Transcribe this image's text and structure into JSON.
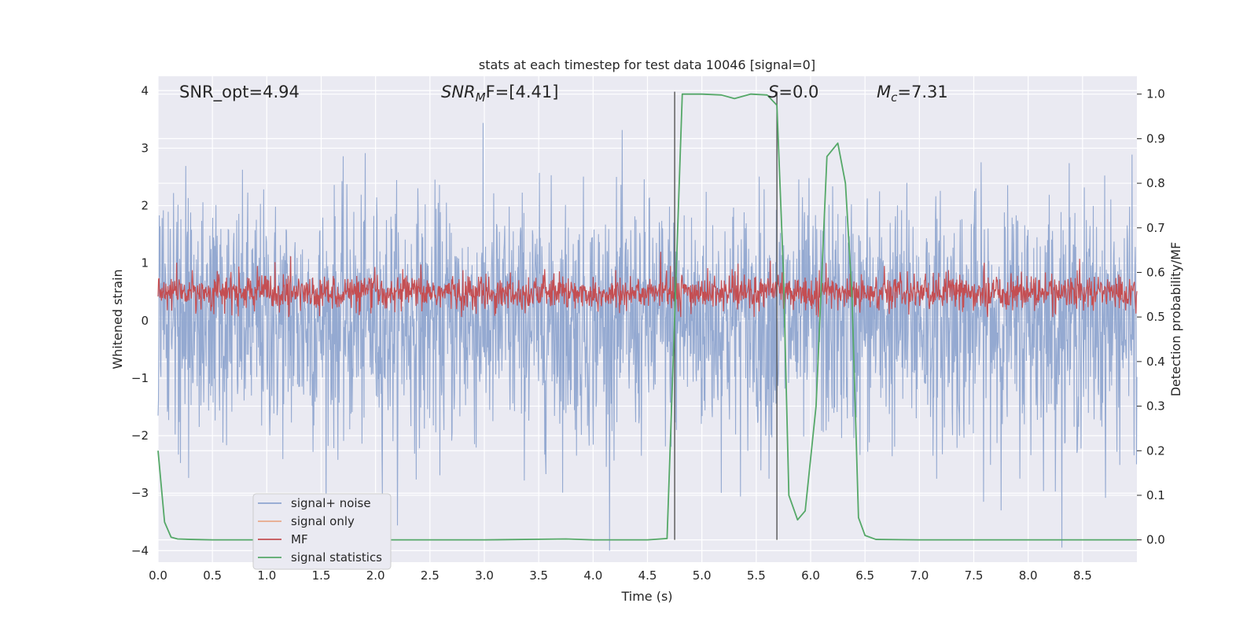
{
  "chart_data": {
    "type": "line",
    "title": "stats at each timestep for test data 10046 [signal=0]",
    "xlabel": "Time (s)",
    "ylabel": "Whitened strain",
    "ylabel_right": "Detection probability/MF",
    "xlim": [
      0,
      9.0
    ],
    "ylim": [
      -4.2,
      4.25
    ],
    "ylim_right": [
      -0.05,
      1.04
    ],
    "grid": true,
    "legend_position": "lower-left",
    "x_ticks": [
      "0.0",
      "0.5",
      "1.0",
      "1.5",
      "2.0",
      "2.5",
      "3.0",
      "3.5",
      "4.0",
      "4.5",
      "5.0",
      "5.5",
      "6.0",
      "6.5",
      "7.0",
      "7.5",
      "8.0",
      "8.5"
    ],
    "y_ticks_left": [
      "4",
      "3",
      "2",
      "1",
      "0",
      "−1",
      "−2",
      "−3",
      "−4"
    ],
    "y_ticks_right": [
      "1.0",
      "0.9",
      "0.8",
      "0.7",
      "0.6",
      "0.5",
      "0.4",
      "0.3",
      "0.2",
      "0.1",
      "0.0"
    ],
    "annotations": {
      "snr_opt": "SNR_opt=4.94",
      "snr_mf_main": "SNR",
      "snr_mf_sub": "M",
      "snr_mf_tail": "F=[4.41]",
      "s_label": "S",
      "s_value": "=0.0",
      "mc_label": "M",
      "mc_sub": "c",
      "mc_value": "=7.31"
    },
    "vertical_lines_x": [
      4.75,
      5.69
    ],
    "series": [
      {
        "name": "signal+ noise",
        "color": "#8fa5cf",
        "kind": "noise",
        "y_range": [
          -4.0,
          3.6
        ]
      },
      {
        "name": "signal only",
        "color": "#e8a98a",
        "kind": "flat",
        "values": []
      },
      {
        "name": "MF",
        "color": "#c44e52",
        "kind": "mf",
        "y_range": [
          0.05,
          1.0
        ]
      },
      {
        "name": "signal statistics",
        "color": "#55a868",
        "axis": "right",
        "x": [
          0.0,
          0.06,
          0.12,
          0.18,
          0.3,
          0.5,
          1.0,
          2.0,
          3.0,
          3.75,
          4.0,
          4.5,
          4.68,
          4.75,
          4.82,
          5.0,
          5.18,
          5.3,
          5.45,
          5.6,
          5.69,
          5.75,
          5.8,
          5.88,
          5.95,
          6.05,
          6.15,
          6.2,
          6.25,
          6.32,
          6.38,
          6.44,
          6.5,
          6.6,
          7.0,
          8.0,
          9.0
        ],
        "y": [
          0.2,
          0.04,
          0.006,
          0.002,
          0.001,
          0.0,
          0.0,
          0.0,
          0.0,
          0.002,
          0.0,
          0.0,
          0.003,
          0.5,
          1.0,
          1.0,
          0.998,
          0.99,
          1.0,
          0.998,
          0.975,
          0.6,
          0.1,
          0.045,
          0.065,
          0.3,
          0.86,
          0.875,
          0.89,
          0.8,
          0.55,
          0.05,
          0.01,
          0.001,
          0.0,
          0.0,
          0.0
        ]
      }
    ]
  },
  "colors": {
    "axes_bg": "#eaeaf2",
    "grid": "#ffffff",
    "vline": "#555555",
    "legend_bg": "#eaeaf2",
    "legend_border": "#cccccc"
  }
}
